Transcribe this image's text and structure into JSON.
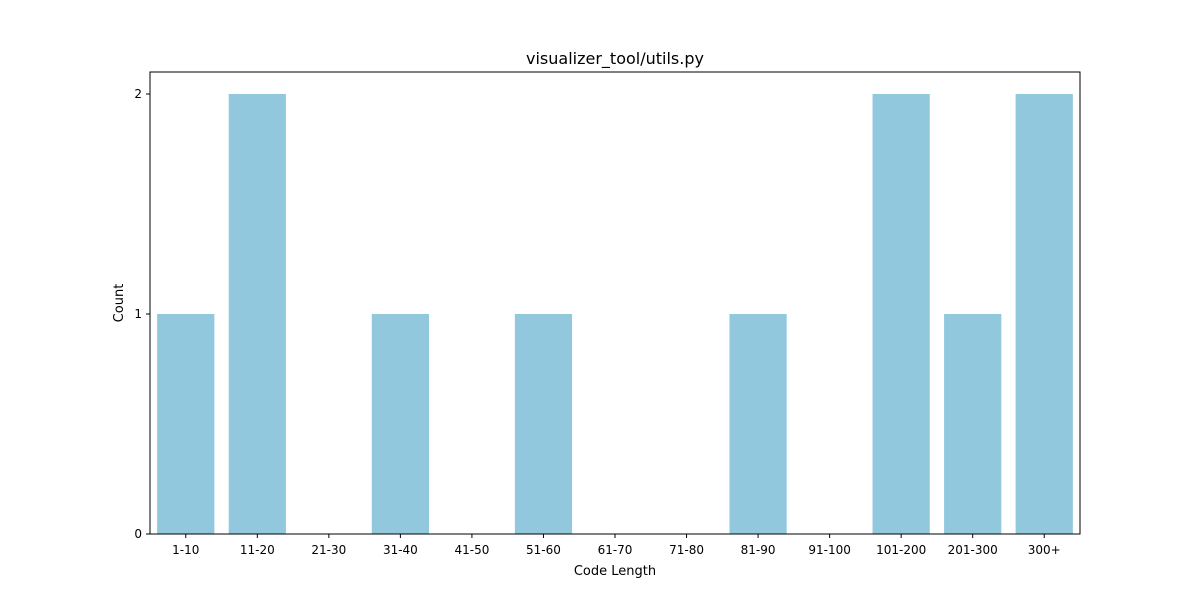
{
  "chart_data": {
    "type": "bar",
    "title": "visualizer_tool/utils.py",
    "xlabel": "Code Length",
    "ylabel": "Count",
    "categories": [
      "1-10",
      "11-20",
      "21-30",
      "31-40",
      "41-50",
      "51-60",
      "61-70",
      "71-80",
      "81-90",
      "91-100",
      "101-200",
      "201-300",
      "300+"
    ],
    "values": [
      1,
      2,
      0,
      1,
      0,
      1,
      0,
      0,
      1,
      0,
      2,
      1,
      2
    ],
    "yticks": [
      0,
      1,
      2
    ],
    "ylim": [
      0,
      2.1
    ],
    "grid": false,
    "legend": false,
    "bar_color": "#92c8dd",
    "axis_color": "#000000"
  }
}
